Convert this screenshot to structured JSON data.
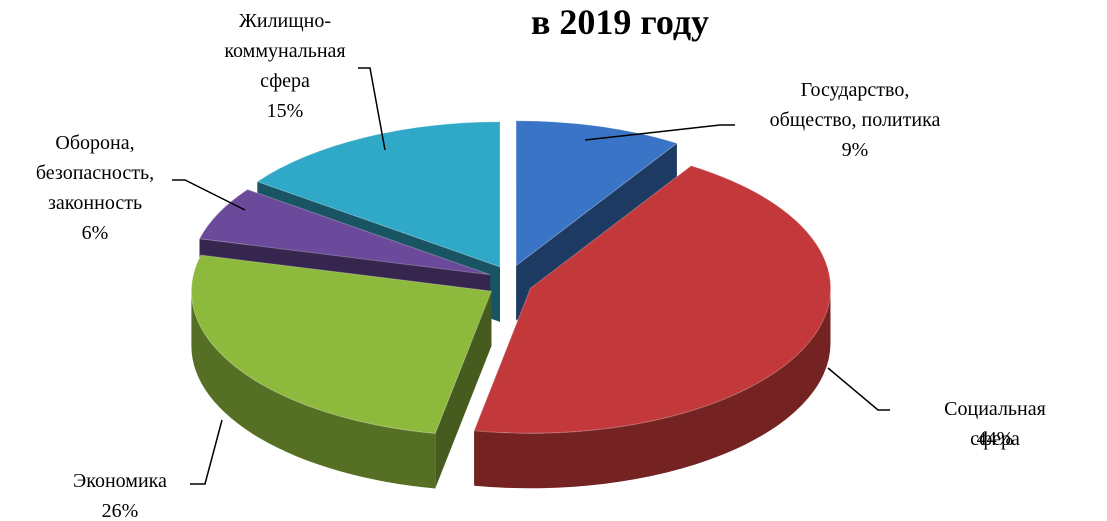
{
  "chart_data": {
    "type": "pie",
    "title": "в 2019 году",
    "categories": [
      "Государство,\nобщество, политика",
      "Социальная сфера",
      "Экономика",
      "Оборона,\nбезопасность,\nзаконность",
      "Жилищно-\nкоммунальная\nсфера"
    ],
    "values": [
      9,
      44,
      26,
      6,
      15
    ],
    "value_labels": [
      "9%",
      "44%",
      "26%",
      "6%",
      "15%"
    ],
    "colors": [
      "#3a74c6",
      "#c3393b",
      "#8db93d",
      "#6b4a9b",
      "#2fa9c7"
    ]
  }
}
